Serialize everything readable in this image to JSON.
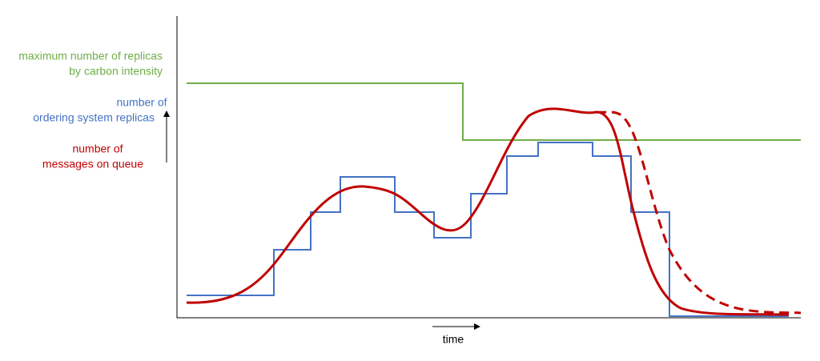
{
  "legend": {
    "carbon_limit": [
      "maximum number of replicas",
      "by carbon intensity"
    ],
    "replicas": [
      "number of",
      "ordering system replicas"
    ],
    "messages": [
      "number of",
      "messages on queue"
    ]
  },
  "x_axis_label": "time"
}
